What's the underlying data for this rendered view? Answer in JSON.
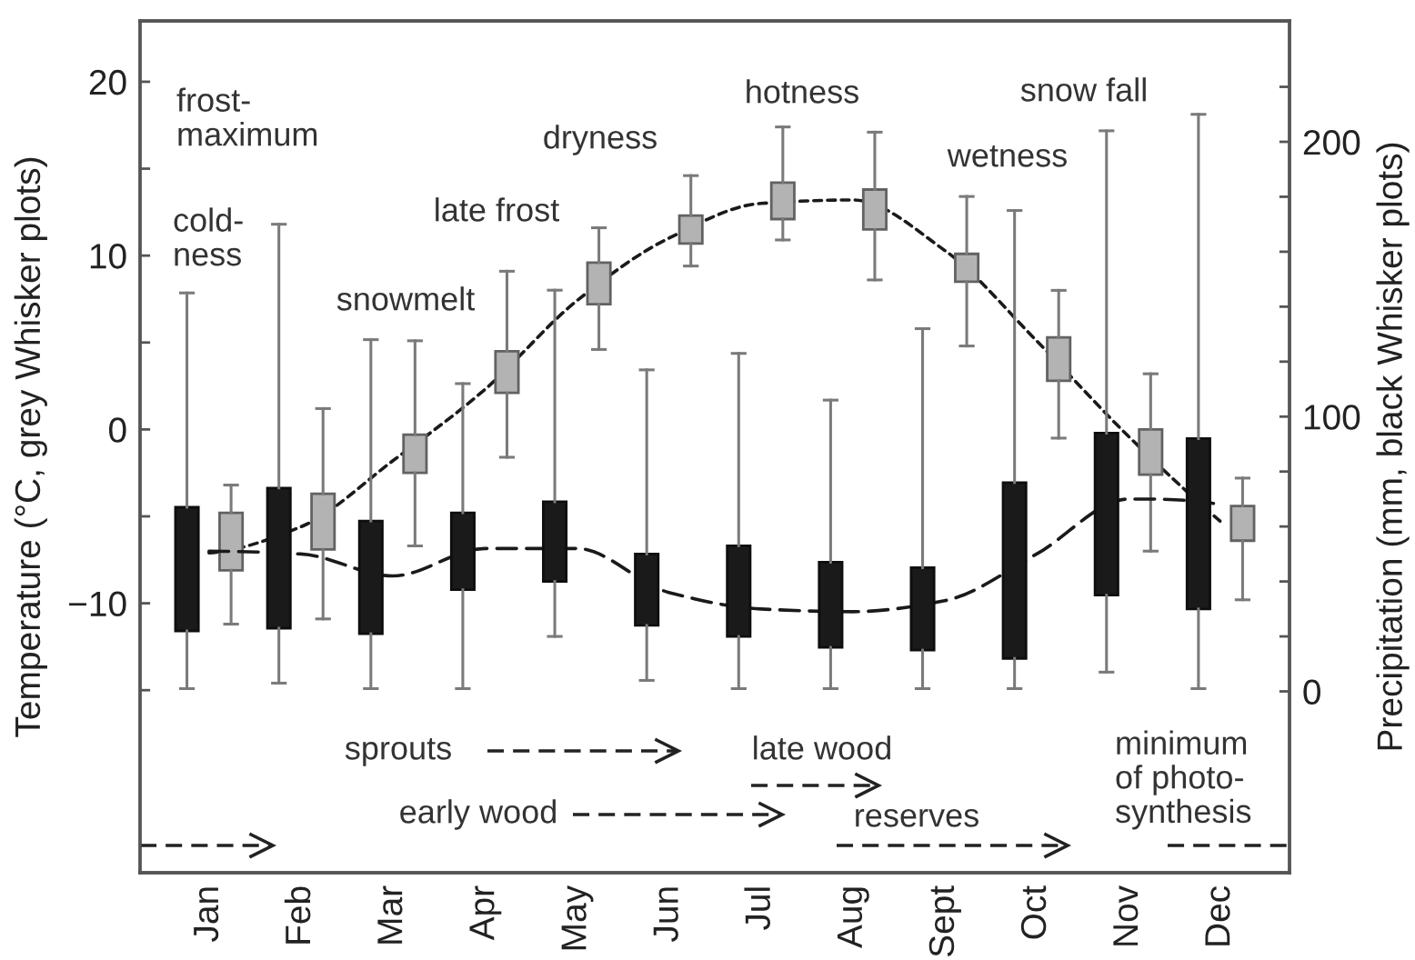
{
  "chart_data": {
    "type": "box",
    "categories": [
      "Jan",
      "Feb",
      "Mar",
      "Apr",
      "May",
      "Jun",
      "Jul",
      "Aug",
      "Sept",
      "Oct",
      "Nov",
      "Dec"
    ],
    "ylabel": "Temperature (°C, grey Whisker plots)",
    "y2label": "Precipitation (mm, black Whisker plots)",
    "ylim": [
      -25.5,
      23.5
    ],
    "yticks": [
      {
        "value": -15,
        "label": null
      },
      {
        "value": -10,
        "label": "−10"
      },
      {
        "value": -5,
        "label": null
      },
      0,
      {
        "value": 5,
        "label": null
      },
      10,
      {
        "value": 15,
        "label": null
      },
      20
    ],
    "y2lim": [
      -66,
      244
    ],
    "y2ticks": [
      0,
      {
        "value": 20,
        "label": null
      },
      {
        "value": 40,
        "label": null
      },
      {
        "value": 60,
        "label": null
      },
      {
        "value": 80,
        "label": null
      },
      100,
      {
        "value": 120,
        "label": null
      },
      {
        "value": 140,
        "label": null
      },
      {
        "value": 160,
        "label": null
      },
      {
        "value": 180,
        "label": null
      },
      200,
      {
        "value": 220,
        "label": null
      }
    ],
    "series": [
      {
        "axis": "y2",
        "color": "#1a1a1a",
        "boxes": [
          {
            "low": 1,
            "q1": 22,
            "q3": 67,
            "high": 145
          },
          {
            "low": 3,
            "q1": 23,
            "q3": 74,
            "high": 170
          },
          {
            "low": 1,
            "q1": 21,
            "q3": 62,
            "high": 128
          },
          {
            "low": 1,
            "q1": 37,
            "q3": 65,
            "high": 112
          },
          {
            "low": 20,
            "q1": 40,
            "q3": 69,
            "high": 146
          },
          {
            "low": 4,
            "q1": 24,
            "q3": 50,
            "high": 117
          },
          {
            "low": 1,
            "q1": 20,
            "q3": 53,
            "high": 123
          },
          {
            "low": 1,
            "q1": 16,
            "q3": 47,
            "high": 106
          },
          {
            "low": 1,
            "q1": 15,
            "q3": 45,
            "high": 132
          },
          {
            "low": 1,
            "q1": 12,
            "q3": 76,
            "high": 175
          },
          {
            "low": 7,
            "q1": 35,
            "q3": 94,
            "high": 204
          },
          {
            "low": 1,
            "q1": 30,
            "q3": 92,
            "high": 210
          }
        ]
      },
      {
        "color": "#b3b3b3",
        "boxes": [
          {
            "low": -11.2,
            "q1": -8.1,
            "q3": -4.8,
            "high": -3.2
          },
          {
            "low": -10.9,
            "q1": -6.9,
            "q3": -3.7,
            "high": 1.2
          },
          {
            "low": -6.7,
            "q1": -2.5,
            "q3": -0.3,
            "high": 5.1
          },
          {
            "low": -1.6,
            "q1": 2.1,
            "q3": 4.5,
            "high": 9.1
          },
          {
            "low": 4.6,
            "q1": 7.2,
            "q3": 9.6,
            "high": 11.6
          },
          {
            "low": 9.4,
            "q1": 10.7,
            "q3": 12.3,
            "high": 14.6
          },
          {
            "low": 10.9,
            "q1": 12.1,
            "q3": 14.2,
            "high": 17.4
          },
          {
            "low": 8.6,
            "q1": 11.5,
            "q3": 13.8,
            "high": 17.1
          },
          {
            "low": 4.8,
            "q1": 8.5,
            "q3": 10.1,
            "high": 13.4
          },
          {
            "low": -0.5,
            "q1": 2.8,
            "q3": 5.3,
            "high": 8.0
          },
          {
            "low": -7.0,
            "q1": -2.6,
            "q3": 0.0,
            "high": 3.2
          },
          {
            "low": -9.8,
            "q1": -6.4,
            "q3": -4.4,
            "high": -2.8
          }
        ]
      },
      {
        "type": "line",
        "axis": "y2",
        "color": "#1a1a1a",
        "line_style": "dashed",
        "values": [
          51,
          50,
          42,
          52,
          52,
          36,
          30,
          29,
          33,
          50,
          70,
          68
        ]
      },
      {
        "type": "line",
        "color": "#1a1a1a",
        "line_style": "dotted",
        "values": [
          -7.1,
          -5.6,
          -1.8,
          2.3,
          7.4,
          11.0,
          13.0,
          13.2,
          10.3,
          5.1,
          -0.4,
          -5.3
        ]
      }
    ],
    "annotations": [
      "frost-\nmaximum",
      "cold-\nness",
      "snowmelt",
      "late frost",
      "dryness",
      "hotness",
      "wetness",
      "snow fall",
      "sprouts",
      "late wood",
      "early wood",
      "reserves",
      "minimum\nof photo-\nsynthesis"
    ]
  }
}
